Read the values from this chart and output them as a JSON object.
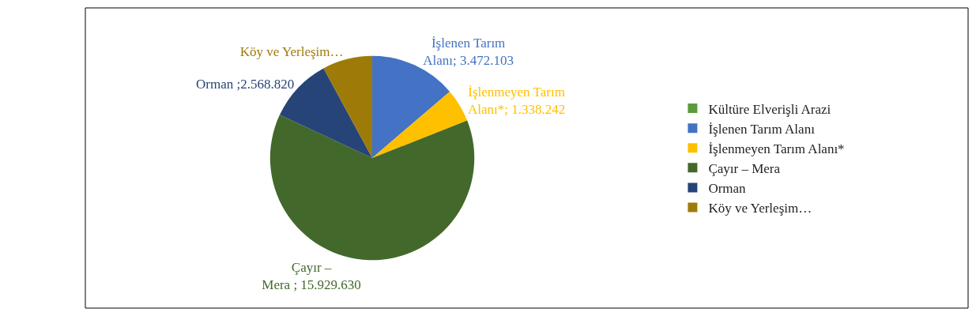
{
  "chart_data": {
    "type": "pie",
    "categories": [
      "Kültüre Elverişli Arazi",
      "İşlenen Tarım Alanı",
      "İşlenmeyen Tarım Alanı*",
      "Çayır – Mera",
      "Orman",
      "Köy ve Yerleşim…"
    ],
    "values": [
      0,
      3472103,
      1338242,
      15929630,
      2568820,
      2000000
    ],
    "colors": [
      "#5b9b3c",
      "#4472c4",
      "#ffc000",
      "#43682b",
      "#264478",
      "#9e7b08"
    ],
    "value_labels": [
      null,
      "İşlenen Tarım Alanı; 3.472.103",
      "İşlenmeyen Tarım Alanı*; 1.338.242",
      "Çayır – Mera ; 15.929.630",
      "Orman ;2.568.820",
      "Köy ve Yerleşim…"
    ],
    "legend": "right"
  }
}
